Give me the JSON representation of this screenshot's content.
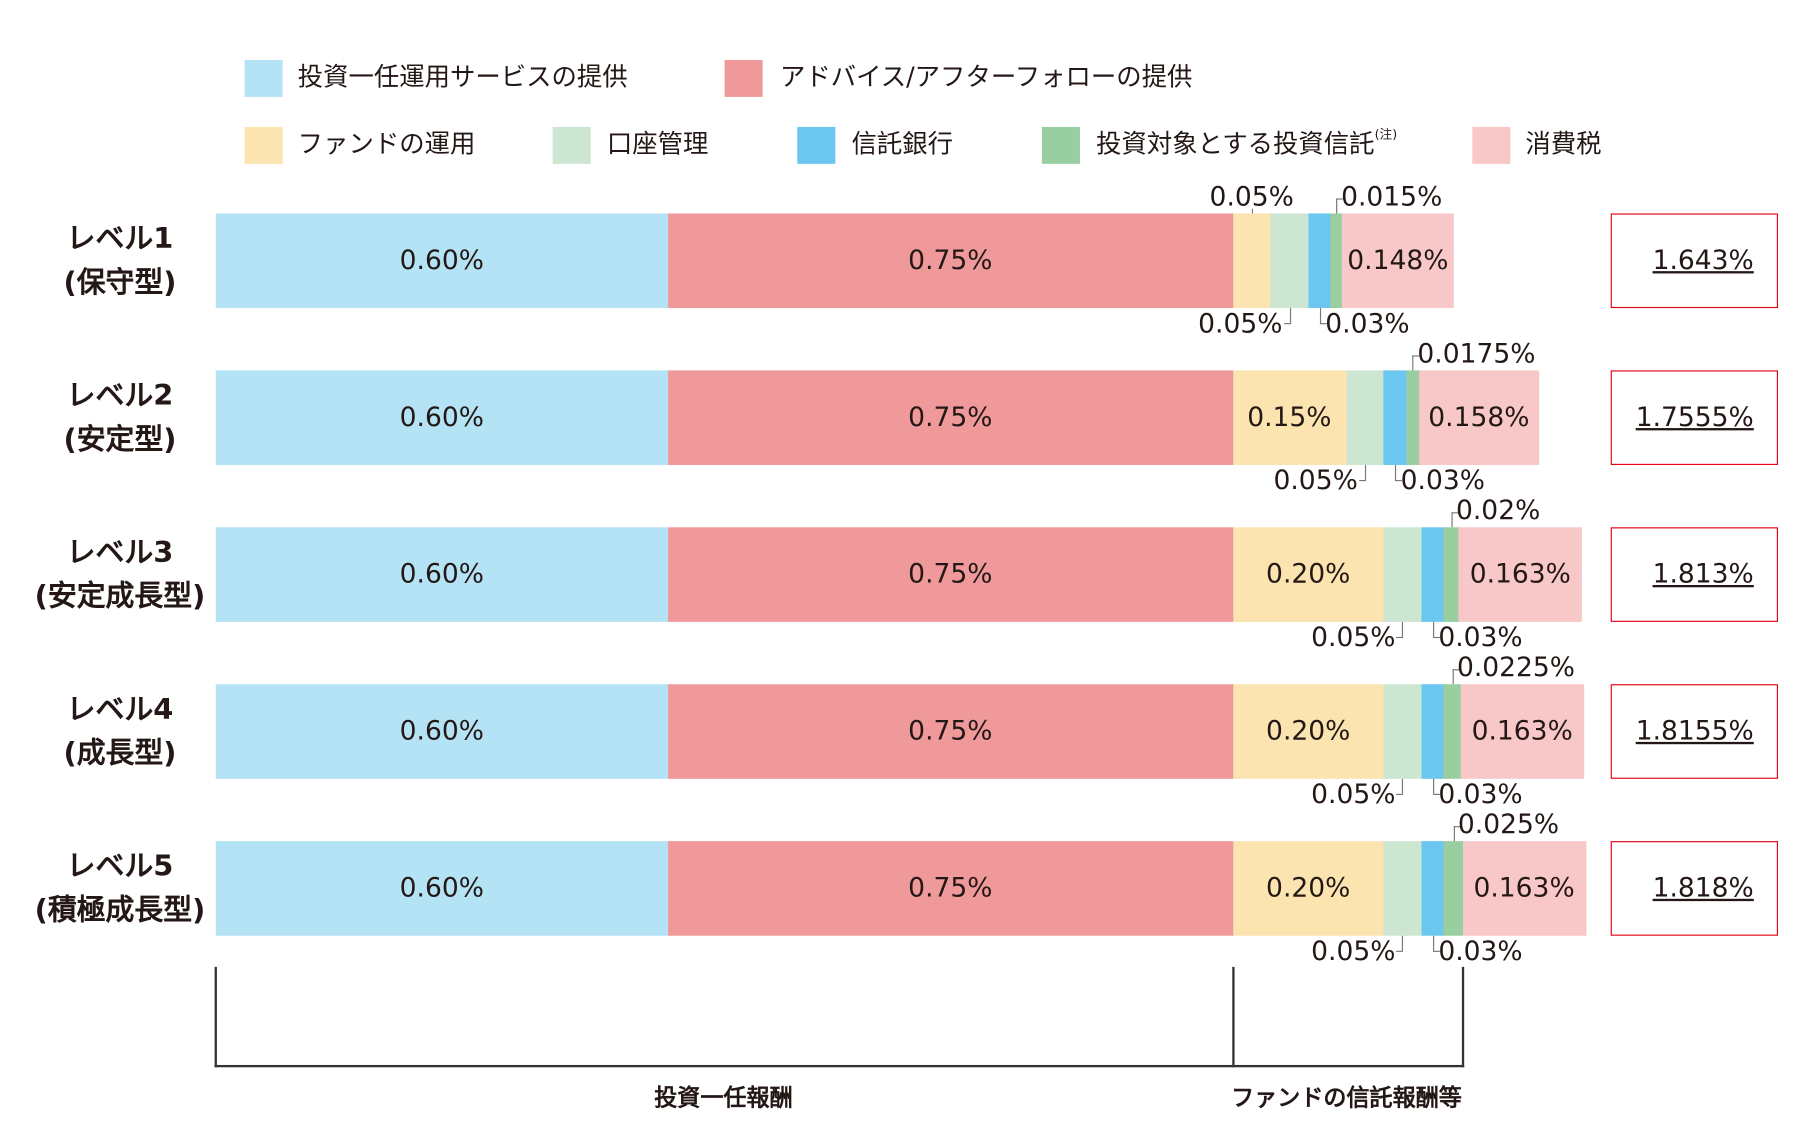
{
  "legend": [
    {
      "label": "投資一任運用サービスの提供",
      "color": "#b5e3f6"
    },
    {
      "label": "アドバイス/アフターフォローの提供",
      "color": "#f0999b"
    },
    {
      "label": "ファンドの運用",
      "color": "#fbe4b0"
    },
    {
      "label": "口座管理",
      "color": "#cce6d2"
    },
    {
      "label": "信託銀行",
      "color": "#6bc6f0"
    },
    {
      "label": "投資対象とする投資信託",
      "note": "(注)",
      "color": "#98cea0"
    },
    {
      "label": "消費税",
      "color": "#f8c8c9"
    }
  ],
  "chart_data": {
    "type": "bar",
    "orientation": "horizontal",
    "stacked": true,
    "categories": [
      {
        "line1": "レベル1",
        "line2": "(保守型)"
      },
      {
        "line1": "レベル2",
        "line2": "(安定型)"
      },
      {
        "line1": "レベル3",
        "line2": "(安定成長型)"
      },
      {
        "line1": "レベル4",
        "line2": "(成長型)"
      },
      {
        "line1": "レベル5",
        "line2": "(積極成長型)"
      }
    ],
    "series": [
      {
        "name": "投資一任運用サービスの提供",
        "values": [
          0.6,
          0.6,
          0.6,
          0.6,
          0.6
        ],
        "labels": [
          "0.60%",
          "0.60%",
          "0.60%",
          "0.60%",
          "0.60%"
        ]
      },
      {
        "name": "アドバイス/アフターフォローの提供",
        "values": [
          0.75,
          0.75,
          0.75,
          0.75,
          0.75
        ],
        "labels": [
          "0.75%",
          "0.75%",
          "0.75%",
          "0.75%",
          "0.75%"
        ]
      },
      {
        "name": "ファンドの運用",
        "values": [
          0.05,
          0.15,
          0.2,
          0.2,
          0.2
        ],
        "labels": [
          "0.05%",
          "0.15%",
          "0.20%",
          "0.20%",
          "0.20%"
        ]
      },
      {
        "name": "口座管理",
        "values": [
          0.05,
          0.05,
          0.05,
          0.05,
          0.05
        ],
        "labels": [
          "0.05%",
          "0.05%",
          "0.05%",
          "0.05%",
          "0.05%"
        ]
      },
      {
        "name": "信託銀行",
        "values": [
          0.03,
          0.03,
          0.03,
          0.03,
          0.03
        ],
        "labels": [
          "0.03%",
          "0.03%",
          "0.03%",
          "0.03%",
          "0.03%"
        ]
      },
      {
        "name": "投資対象とする投資信託",
        "values": [
          0.015,
          0.0175,
          0.02,
          0.0225,
          0.025
        ],
        "labels": [
          "0.015%",
          "0.0175%",
          "0.02%",
          "0.0225%",
          "0.025%"
        ]
      },
      {
        "name": "消費税",
        "values": [
          0.148,
          0.158,
          0.163,
          0.163,
          0.163
        ],
        "labels": [
          "0.148%",
          "0.158%",
          "0.163%",
          "0.163%",
          "0.163%"
        ]
      }
    ],
    "totals": [
      "1.643%",
      "1.7555%",
      "1.813%",
      "1.8155%",
      "1.818%"
    ],
    "unit": "%",
    "grid": false,
    "legend_position": "top"
  },
  "brackets": {
    "left_label": "投資一任報酬",
    "right_label": "ファンドの信託報酬等"
  }
}
